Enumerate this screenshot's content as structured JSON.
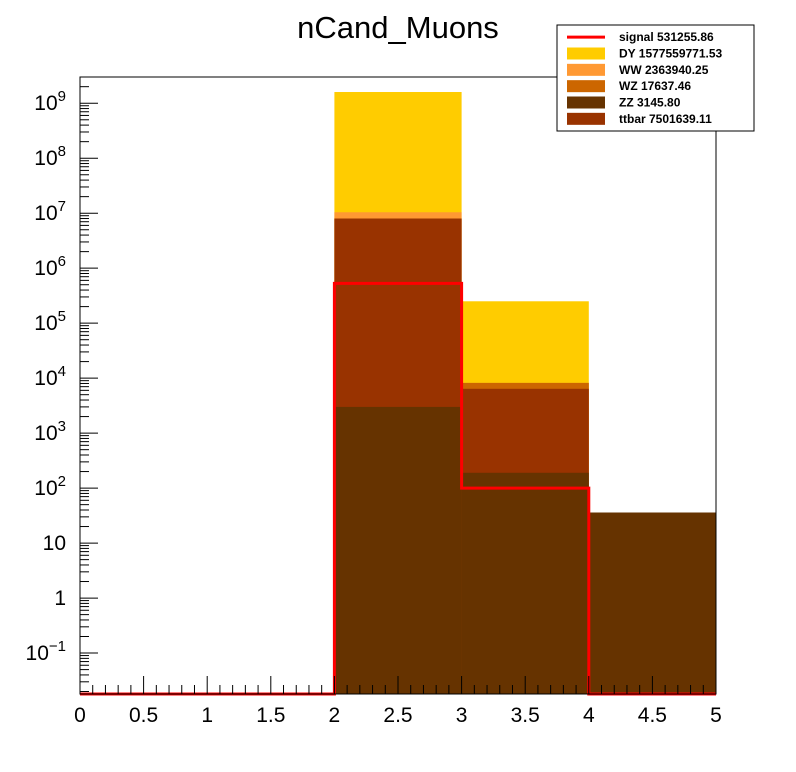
{
  "chart_data": {
    "type": "bar",
    "title": "nCand_Muons",
    "xlabel": "",
    "ylabel": "",
    "stacked": true,
    "log_y": true,
    "x_edges": [
      0,
      1,
      2,
      3,
      4,
      5
    ],
    "xlim": [
      0,
      5
    ],
    "ylim": [
      0.018,
      3000000000
    ],
    "x_ticks": [
      "0",
      "0.5",
      "1",
      "1.5",
      "2",
      "2.5",
      "3",
      "3.5",
      "4",
      "4.5",
      "5"
    ],
    "y_ticks": [
      {
        "base": "10",
        "exp": "−1",
        "value": 0.1
      },
      {
        "base": "1",
        "exp": "",
        "value": 1
      },
      {
        "base": "10",
        "exp": "",
        "value": 10
      },
      {
        "base": "10",
        "exp": "2",
        "value": 100
      },
      {
        "base": "10",
        "exp": "3",
        "value": 1000
      },
      {
        "base": "10",
        "exp": "4",
        "value": 10000
      },
      {
        "base": "10",
        "exp": "5",
        "value": 100000
      },
      {
        "base": "10",
        "exp": "6",
        "value": 1000000
      },
      {
        "base": "10",
        "exp": "7",
        "value": 10000000
      },
      {
        "base": "10",
        "exp": "8",
        "value": 100000000
      },
      {
        "base": "10",
        "exp": "9",
        "value": 1000000000
      }
    ],
    "grid": false,
    "legend_position": "top-right",
    "stack_top_values": [
      {
        "name": "ZZ",
        "values": [
          0,
          0,
          3000,
          190,
          36
        ]
      },
      {
        "name": "ttbar",
        "values": [
          0,
          0,
          8000000,
          6400,
          36
        ]
      },
      {
        "name": "WZ",
        "values": [
          0,
          0,
          8000000,
          8200,
          36
        ]
      },
      {
        "name": "WW",
        "values": [
          0,
          0,
          10400000,
          8200,
          36
        ]
      },
      {
        "name": "DY",
        "values": [
          0,
          0,
          1600000000,
          250000,
          36
        ]
      }
    ],
    "series": [
      {
        "name": "signal",
        "legend": "signal 531255.86",
        "style": "line",
        "color": "#ff0000",
        "values": [
          0,
          0,
          530000,
          100,
          0
        ]
      },
      {
        "name": "DY",
        "legend": "DY 1577559771.53",
        "style": "fill",
        "color": "#ffcc00"
      },
      {
        "name": "WW",
        "legend": "WW 2363940.25",
        "style": "fill",
        "color": "#ff9933"
      },
      {
        "name": "WZ",
        "legend": "WZ 17637.46",
        "style": "fill",
        "color": "#cc6600"
      },
      {
        "name": "ZZ",
        "legend": "ZZ 3145.80",
        "style": "fill",
        "color": "#663300"
      },
      {
        "name": "ttbar",
        "legend": "ttbar 7501639.11",
        "style": "fill",
        "color": "#993300"
      }
    ]
  }
}
